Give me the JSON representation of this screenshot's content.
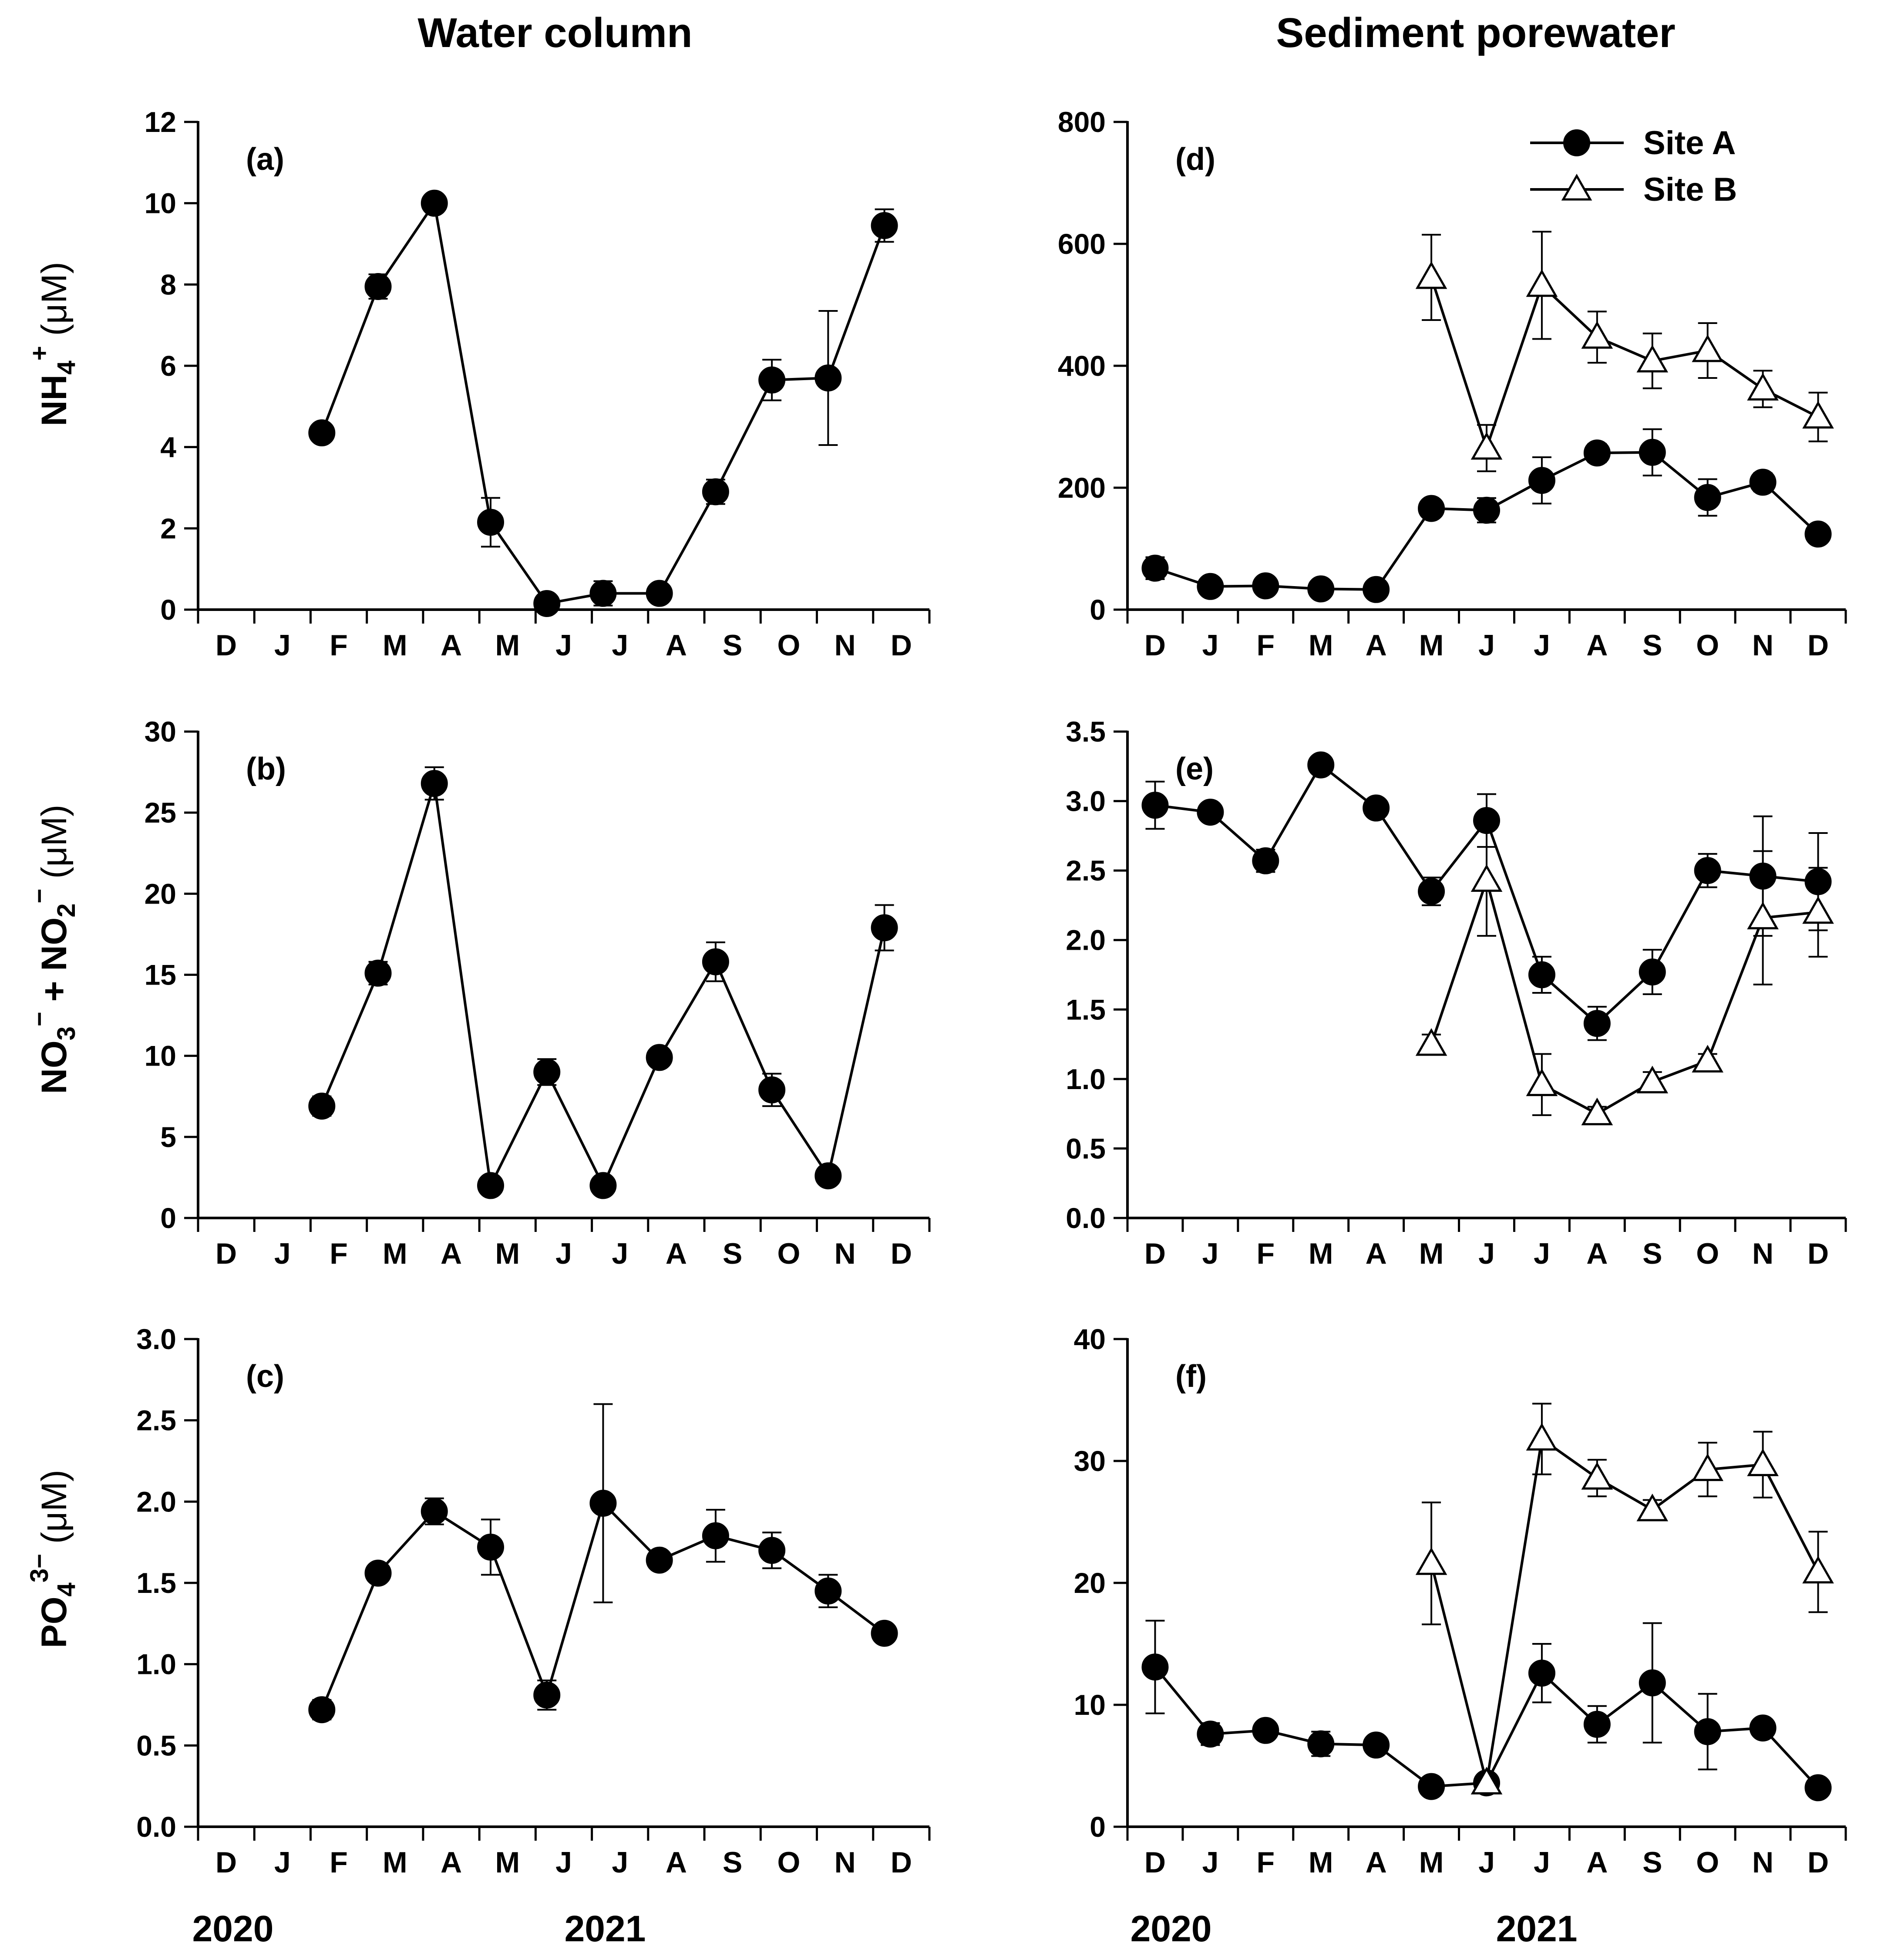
{
  "columns": {
    "left": "Water column",
    "right": "Sediment porewater"
  },
  "years": {
    "first": "2020",
    "second": "2021"
  },
  "legend": {
    "siteA": {
      "label": "Site A",
      "marker": "filled-circle"
    },
    "siteB": {
      "label": "Site B",
      "marker": "open-triangle"
    }
  },
  "ylabels": {
    "nh4": {
      "main": "NH",
      "sub": "4",
      "sup": "+",
      "unit": " (μM)"
    },
    "no3": {
      "m1": "NO",
      "s1": "3",
      "p1": "−",
      "mid": " + NO",
      "s2": "2",
      "p2": "−",
      "unit": " (μM)"
    },
    "po4": {
      "main": "PO",
      "sub": "4",
      "sup": "3−",
      "unit": " (μM)"
    }
  },
  "chart_data": [
    {
      "id": "a",
      "panel_label": "(a)",
      "type": "line",
      "column": "Water column",
      "categories": [
        "D",
        "J",
        "F",
        "M",
        "A",
        "M",
        "J",
        "J",
        "A",
        "S",
        "O",
        "N",
        "D"
      ],
      "ylim": [
        0,
        12
      ],
      "yticks": [
        "0",
        "2",
        "4",
        "6",
        "8",
        "10",
        "12"
      ],
      "series": [
        {
          "name": "Site A",
          "marker": "filled-circle",
          "x": [
            2.7,
            3.7,
            4.7,
            5.7,
            6.7,
            7.7,
            8.7,
            9.7,
            10.7,
            11.7,
            12.7
          ],
          "values": [
            4.35,
            7.95,
            10.0,
            2.15,
            0.15,
            0.4,
            0.4,
            2.9,
            5.65,
            5.7,
            9.45
          ],
          "errors": [
            0.15,
            0.3,
            0.1,
            0.6,
            0.1,
            0.3,
            0.2,
            0.3,
            0.5,
            1.65,
            0.4
          ]
        }
      ]
    },
    {
      "id": "b",
      "panel_label": "(b)",
      "type": "line",
      "column": "Water column",
      "categories": [
        "D",
        "J",
        "F",
        "M",
        "A",
        "M",
        "J",
        "J",
        "A",
        "S",
        "O",
        "N",
        "D"
      ],
      "ylim": [
        0,
        30
      ],
      "yticks": [
        "0",
        "5",
        "10",
        "15",
        "20",
        "25",
        "30"
      ],
      "series": [
        {
          "name": "Site A",
          "marker": "filled-circle",
          "x": [
            2.7,
            3.7,
            4.7,
            5.7,
            6.7,
            7.7,
            8.7,
            9.7,
            10.7,
            11.7,
            12.7
          ],
          "values": [
            6.9,
            15.1,
            26.8,
            2.0,
            9.0,
            2.0,
            9.9,
            15.8,
            7.9,
            2.6,
            17.9
          ],
          "errors": [
            0.6,
            0.7,
            1.0,
            0.2,
            0.8,
            0.3,
            0.5,
            1.2,
            1.0,
            0.3,
            1.4
          ]
        }
      ]
    },
    {
      "id": "c",
      "panel_label": "(c)",
      "type": "line",
      "column": "Water column",
      "categories": [
        "D",
        "J",
        "F",
        "M",
        "A",
        "M",
        "J",
        "J",
        "A",
        "S",
        "O",
        "N",
        "D"
      ],
      "ylim": [
        0,
        3
      ],
      "yticks": [
        "0.0",
        "0.5",
        "1.0",
        "1.5",
        "2.0",
        "2.5",
        "3.0"
      ],
      "series": [
        {
          "name": "Site A",
          "marker": "filled-circle",
          "x": [
            2.7,
            3.7,
            4.7,
            5.7,
            6.7,
            7.7,
            8.7,
            9.7,
            10.7,
            11.7,
            12.7
          ],
          "values": [
            0.72,
            1.56,
            1.94,
            1.72,
            0.81,
            1.99,
            1.64,
            1.79,
            1.7,
            1.45,
            1.19
          ],
          "errors": [
            0.06,
            0.05,
            0.08,
            0.17,
            0.09,
            0.61,
            0.05,
            0.16,
            0.11,
            0.1,
            0.04
          ]
        }
      ]
    },
    {
      "id": "d",
      "panel_label": "(d)",
      "type": "line",
      "column": "Sediment porewater",
      "categories": [
        "D",
        "J",
        "F",
        "M",
        "A",
        "M",
        "J",
        "J",
        "A",
        "S",
        "O",
        "N",
        "D"
      ],
      "ylim": [
        0,
        800
      ],
      "yticks": [
        "0",
        "200",
        "400",
        "600",
        "800"
      ],
      "series": [
        {
          "name": "Site A",
          "marker": "filled-circle",
          "x": [
            1,
            2,
            3,
            4,
            5,
            6,
            7,
            8,
            9,
            10,
            11,
            12,
            13
          ],
          "values": [
            68,
            38,
            39,
            34,
            33,
            166,
            163,
            212,
            257,
            258,
            184,
            209,
            124
          ],
          "errors": [
            18,
            6,
            6,
            5,
            5,
            10,
            20,
            38,
            15,
            38,
            30,
            15,
            8
          ]
        },
        {
          "name": "Site B",
          "marker": "open-triangle",
          "x": [
            6,
            7,
            8,
            9,
            10,
            11,
            12,
            13
          ],
          "values": [
            545,
            265,
            532,
            447,
            408,
            425,
            362,
            316
          ],
          "errors": [
            70,
            38,
            88,
            42,
            45,
            45,
            30,
            40
          ]
        }
      ]
    },
    {
      "id": "e",
      "panel_label": "(e)",
      "type": "line",
      "column": "Sediment porewater",
      "categories": [
        "D",
        "J",
        "F",
        "M",
        "A",
        "M",
        "J",
        "J",
        "A",
        "S",
        "O",
        "N",
        "D"
      ],
      "ylim": [
        0,
        3.5
      ],
      "yticks": [
        "0.0",
        "0.5",
        "1.0",
        "1.5",
        "2.0",
        "2.5",
        "3.0",
        "3.5"
      ],
      "series": [
        {
          "name": "Site A",
          "marker": "filled-circle",
          "x": [
            1,
            2,
            3,
            4,
            5,
            6,
            7,
            8,
            9,
            10,
            11,
            12,
            13
          ],
          "values": [
            2.97,
            2.92,
            2.57,
            3.26,
            2.95,
            2.35,
            2.86,
            1.75,
            1.4,
            1.77,
            2.5,
            2.46,
            2.42
          ],
          "errors": [
            0.17,
            0.05,
            0.08,
            0.04,
            0.04,
            0.1,
            0.19,
            0.13,
            0.12,
            0.16,
            0.12,
            0.43,
            0.35
          ]
        },
        {
          "name": "Site B",
          "marker": "open-triangle",
          "x": [
            6,
            7,
            8,
            9,
            10,
            11,
            12,
            13
          ],
          "values": [
            1.25,
            2.43,
            0.96,
            0.75,
            0.98,
            1.13,
            2.16,
            2.2
          ],
          "errors": [
            0.07,
            0.4,
            0.22,
            0.05,
            0.07,
            0.05,
            0.48,
            0.32
          ]
        }
      ]
    },
    {
      "id": "f",
      "panel_label": "(f)",
      "type": "line",
      "column": "Sediment porewater",
      "categories": [
        "D",
        "J",
        "F",
        "M",
        "A",
        "M",
        "J",
        "J",
        "A",
        "S",
        "O",
        "N",
        "D"
      ],
      "ylim": [
        0,
        40
      ],
      "yticks": [
        "0",
        "10",
        "20",
        "30",
        "40"
      ],
      "series": [
        {
          "name": "Site A",
          "marker": "filled-circle",
          "x": [
            1,
            2,
            3,
            4,
            5,
            6,
            7,
            8,
            9,
            10,
            11,
            12,
            13
          ],
          "values": [
            13.1,
            7.6,
            7.9,
            6.8,
            6.7,
            3.3,
            3.6,
            12.6,
            8.4,
            11.8,
            7.8,
            8.1,
            3.2
          ],
          "errors": [
            3.8,
            0.9,
            0.6,
            1.0,
            0.4,
            0.3,
            0.3,
            2.4,
            1.5,
            4.9,
            3.1,
            0.6,
            0.3
          ]
        },
        {
          "name": "Site B",
          "marker": "open-triangle",
          "x": [
            6,
            7,
            8,
            9,
            10,
            11,
            12,
            13
          ],
          "values": [
            21.6,
            3.6,
            31.8,
            28.6,
            26.0,
            29.3,
            29.7,
            20.9
          ],
          "errors": [
            5.0,
            0.3,
            2.9,
            1.5,
            0.8,
            2.2,
            2.7,
            3.3
          ]
        }
      ]
    }
  ]
}
